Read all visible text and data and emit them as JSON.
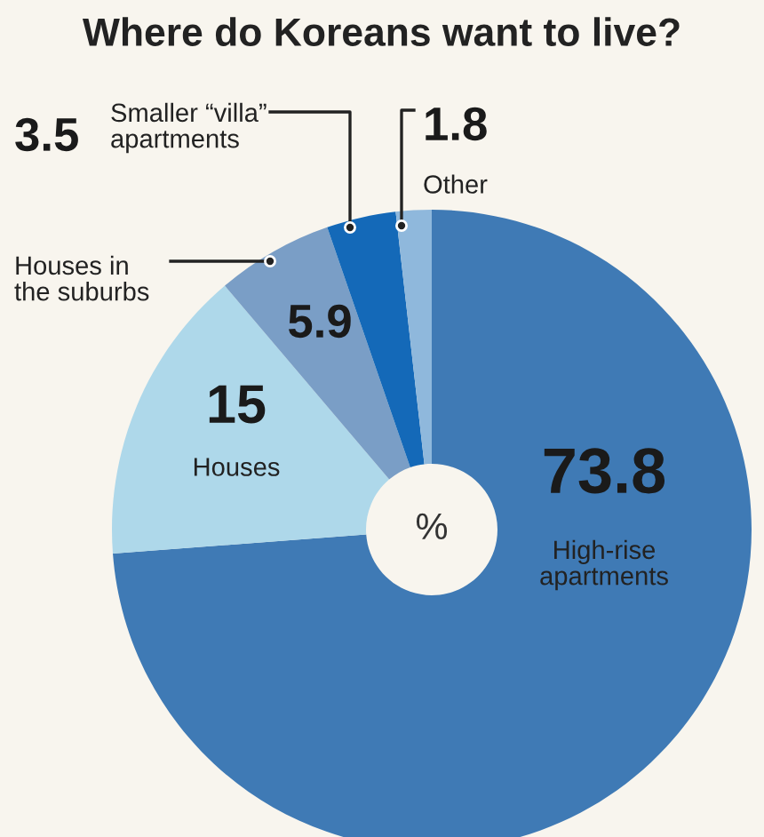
{
  "chart_data": {
    "type": "donut",
    "title": "Where do Koreans want to live?",
    "categories": [
      "High-rise\napartments",
      "Houses",
      "Houses in\nthe suburbs",
      "Smaller “villa”\napartments",
      "Other"
    ],
    "values": [
      73.8,
      15,
      5.9,
      3.5,
      1.8
    ],
    "colors": [
      "#3f7ab5",
      "#aed8ea",
      "#7a9ec6",
      "#1469b8",
      "#8fb8dc"
    ],
    "data_labels": true,
    "annotations": [
      "%"
    ]
  }
}
